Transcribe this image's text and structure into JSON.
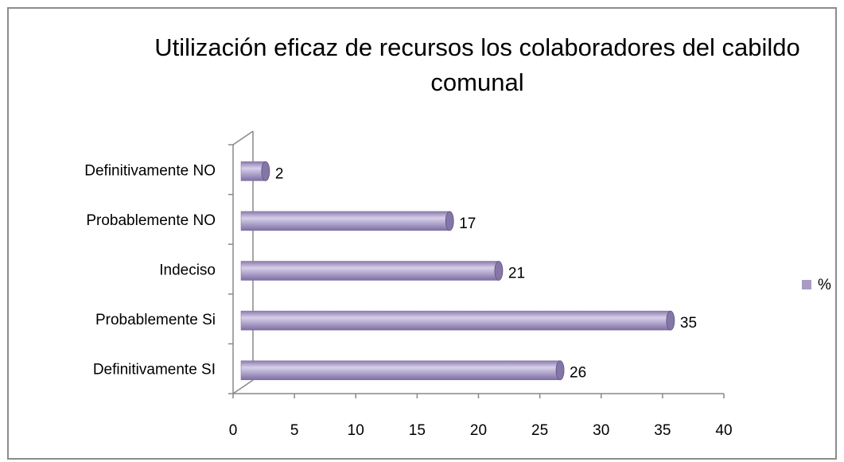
{
  "chart_data": {
    "type": "bar",
    "orientation": "horizontal",
    "title": "Utilización eficaz de recursos los colaboradores del cabildo comunal",
    "categories": [
      "Definitivamente NO",
      "Probablemente NO",
      "Indeciso",
      "Probablemente Si",
      "Definitivamente SI"
    ],
    "series": [
      {
        "name": "%",
        "color": "#a99bc6",
        "values": [
          2,
          17,
          21,
          35,
          26
        ]
      }
    ],
    "xlim": [
      0,
      40
    ],
    "xticks": [
      0,
      5,
      10,
      15,
      20,
      25,
      30,
      35,
      40
    ],
    "legend": "right"
  }
}
